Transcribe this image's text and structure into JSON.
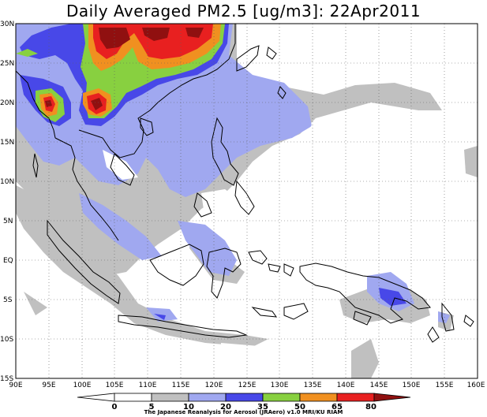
{
  "title": "Daily Averaged PM2.5 [ug/m3]: 22Apr2011",
  "credit": "The Japanese Reanalysis for Aerosol (JRAero) v1.0 MRI/KU RIAM",
  "map": {
    "projection": "lat-lon",
    "lon_range": [
      90,
      160
    ],
    "lat_range": [
      -15,
      30
    ],
    "lon_ticks": [
      "90E",
      "95E",
      "100E",
      "105E",
      "110E",
      "115E",
      "120E",
      "125E",
      "130E",
      "135E",
      "140E",
      "145E",
      "150E",
      "155E",
      "160E"
    ],
    "lat_ticks": [
      "15S",
      "10S",
      "5S",
      "EQ",
      "5N",
      "10N",
      "15N",
      "20N",
      "25N",
      "30N"
    ],
    "grid": "dotted"
  },
  "colorbar": {
    "levels": [
      "0",
      "5",
      "10",
      "20",
      "35",
      "50",
      "65",
      "80"
    ],
    "colors": {
      "lt5": "#ffffff",
      "5to10": "#ffffff",
      "10to20": "#c0c0c0",
      "20to35": "#a0a8f0",
      "35to50": "#4848e8",
      "50to65": "#88d040",
      "65to80": "#f09020",
      "80to100": "#e82020",
      "gt100": "#901010"
    }
  }
}
